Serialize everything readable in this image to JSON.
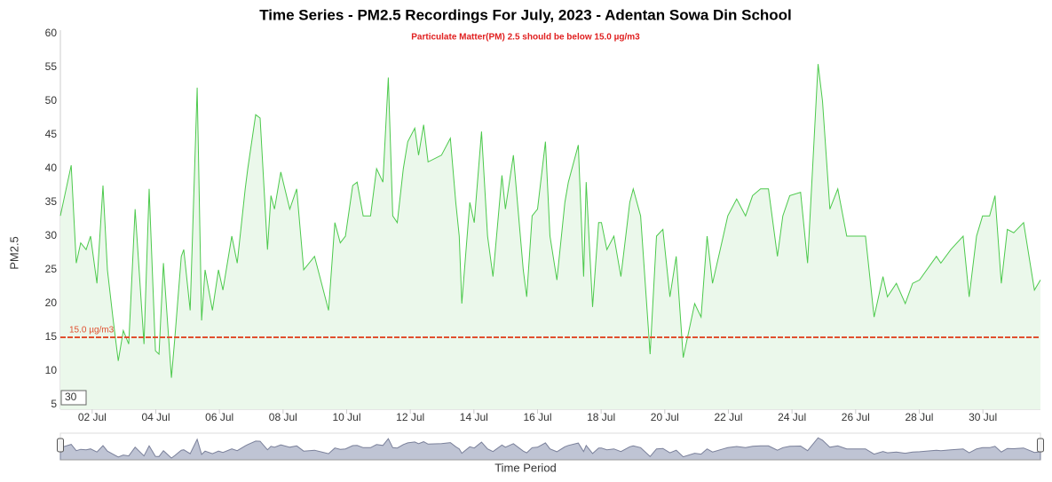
{
  "chart_data": {
    "type": "line",
    "title": "Time Series - PM2.5 Recordings For July, 2023 - Adentan Sowa Din School",
    "subtitle": "Particulate Matter(PM) 2.5 should be below 15.0 µg/m3",
    "y_label": "PM2.5",
    "x_label": "Time Period",
    "range_input": "30",
    "color": "#4cc94c",
    "fill": "#ebf8eb",
    "navigator_color": "#7a809a",
    "navigator_fill": "#bfc4d4",
    "grid": false,
    "threshold": {
      "value": 15,
      "label": "15.0 µg/m3",
      "color": "#e0502f"
    },
    "ylim": [
      5,
      60
    ],
    "yticks": [
      5,
      10,
      15,
      20,
      25,
      30,
      35,
      40,
      45,
      50,
      55,
      60
    ],
    "xlim": [
      1,
      31.81
    ],
    "xticks": [
      {
        "value": 2,
        "label": "02 Jul"
      },
      {
        "value": 4,
        "label": "04 Jul"
      },
      {
        "value": 6,
        "label": "06 Jul"
      },
      {
        "value": 8,
        "label": "08 Jul"
      },
      {
        "value": 10,
        "label": "10 Jul"
      },
      {
        "value": 12,
        "label": "12 Jul"
      },
      {
        "value": 14,
        "label": "14 Jul"
      },
      {
        "value": 16,
        "label": "16 Jul"
      },
      {
        "value": 18,
        "label": "18 Jul"
      },
      {
        "value": 20,
        "label": "20 Jul"
      },
      {
        "value": 22,
        "label": "22 Jul"
      },
      {
        "value": 24,
        "label": "24 Jul"
      },
      {
        "value": 26,
        "label": "26 Jul"
      },
      {
        "value": 28,
        "label": "28 Jul"
      },
      {
        "value": 30,
        "label": "30 Jul"
      }
    ],
    "x": [
      1.0,
      1.34,
      1.5,
      1.64,
      1.81,
      1.95,
      2.15,
      2.34,
      2.48,
      2.65,
      2.82,
      2.98,
      3.15,
      3.35,
      3.63,
      3.79,
      3.99,
      4.1,
      4.24,
      4.49,
      4.6,
      4.8,
      4.88,
      5.08,
      5.3,
      5.44,
      5.55,
      5.78,
      5.97,
      6.11,
      6.39,
      6.56,
      6.81,
      6.89,
      7.14,
      7.28,
      7.51,
      7.62,
      7.73,
      7.93,
      8.21,
      8.43,
      8.65,
      8.99,
      9.43,
      9.63,
      9.8,
      9.96,
      10.19,
      10.33,
      10.52,
      10.75,
      10.94,
      11.14,
      11.31,
      11.45,
      11.59,
      11.78,
      11.92,
      12.14,
      12.26,
      12.42,
      12.56,
      12.98,
      13.26,
      13.43,
      13.54,
      13.62,
      13.87,
      14.01,
      14.24,
      14.43,
      14.6,
      14.88,
      14.99,
      15.24,
      15.55,
      15.66,
      15.83,
      16.0,
      16.25,
      16.39,
      16.61,
      16.86,
      16.97,
      17.28,
      17.45,
      17.53,
      17.73,
      17.92,
      18.01,
      18.18,
      18.4,
      18.62,
      18.9,
      19.01,
      19.24,
      19.54,
      19.74,
      19.94,
      20.16,
      20.36,
      20.58,
      20.94,
      21.14,
      21.33,
      21.5,
      21.84,
      21.98,
      22.26,
      22.54,
      22.76,
      23.01,
      23.26,
      23.54,
      23.71,
      23.93,
      24.27,
      24.49,
      24.82,
      24.96,
      25.19,
      25.44,
      25.72,
      25.94,
      26.31,
      26.58,
      26.86,
      27.0,
      27.28,
      27.56,
      27.79,
      28.01,
      28.54,
      28.68,
      28.99,
      29.38,
      29.57,
      29.8,
      29.99,
      30.21,
      30.38,
      30.58,
      30.77,
      30.97,
      31.28,
      31.62,
      31.81
    ],
    "values": [
      33,
      40.5,
      26,
      29,
      28,
      30,
      23,
      37.5,
      25,
      18,
      11.5,
      16,
      14,
      34,
      14,
      37,
      13,
      12.5,
      26,
      9,
      15,
      27,
      28,
      19,
      52,
      17.5,
      25,
      19,
      25,
      22,
      30,
      26,
      37,
      40,
      48,
      47.5,
      28,
      36,
      34,
      39.5,
      34,
      37,
      25,
      27,
      19,
      32,
      29,
      30,
      37.5,
      38,
      33,
      33,
      40,
      38,
      53.5,
      33,
      32,
      40,
      44,
      46,
      42,
      46.5,
      41,
      42,
      44.5,
      35,
      30,
      20,
      35,
      32,
      45.5,
      30,
      24,
      39,
      34,
      42,
      25,
      21,
      33,
      34,
      44,
      30,
      23.5,
      35,
      38,
      43.5,
      24,
      38,
      19.5,
      32,
      32,
      28,
      30,
      24,
      35,
      37,
      33,
      12.5,
      30,
      31,
      21,
      27,
      12,
      20,
      18,
      30,
      23,
      30,
      33,
      35.5,
      33,
      36,
      37,
      37,
      27,
      33,
      36,
      36.5,
      26,
      55.5,
      50,
      34,
      37,
      30,
      30,
      30,
      18,
      24,
      21,
      23,
      20,
      23,
      23.5,
      27,
      26,
      28,
      30,
      21,
      30,
      33,
      33,
      36,
      23,
      31,
      30.5,
      32,
      22,
      23.5
    ]
  }
}
